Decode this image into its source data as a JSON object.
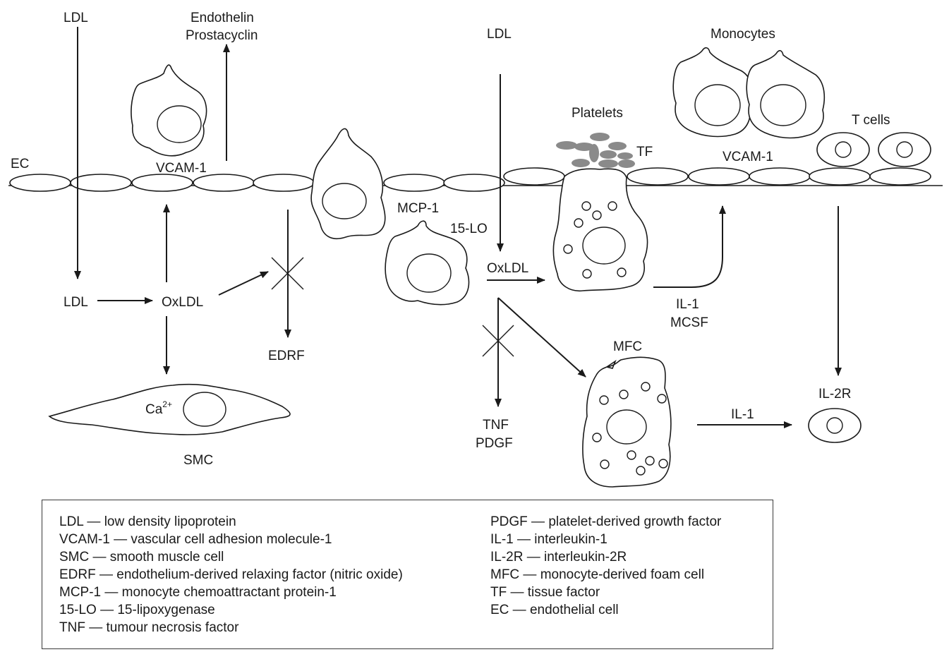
{
  "diagram": {
    "labels": {
      "ldl_top_left": "LDL",
      "endothelin": "Endothelin",
      "prostacyclin": "Prostacyclin",
      "ec": "EC",
      "vcam_left": "VCAM-1",
      "ldl_mid": "LDL",
      "oxldl_left": "OxLDL",
      "edrf": "EDRF",
      "ca": "Ca",
      "ca_sup": "2+",
      "smc": "SMC",
      "mcp1": "MCP-1",
      "lo15": "15-LO",
      "ldl_top_center": "LDL",
      "oxldl_center": "OxLDL",
      "tnf": "TNF",
      "pdgf": "PDGF",
      "platelets": "Platelets",
      "tf": "TF",
      "il1_upper": "IL-1",
      "mcsf": "MCSF",
      "mfc": "MFC",
      "il1_lower": "IL-1",
      "monocytes": "Monocytes",
      "vcam_right": "VCAM-1",
      "tcells": "T cells",
      "il2r": "IL-2R"
    }
  },
  "legend": {
    "left": [
      "LDL — low density lipoprotein",
      "VCAM-1 — vascular cell adhesion molecule-1",
      "SMC — smooth muscle cell",
      "EDRF — endothelium-derived relaxing factor (nitric oxide)",
      "MCP-1 — monocyte chemoattractant protein-1",
      "15-LO — 15-lipoxygenase",
      "TNF — tumour necrosis factor"
    ],
    "right": [
      "PDGF — platelet-derived growth factor",
      "IL-1 — interleukin-1",
      "IL-2R — interleukin-2R",
      "MFC — monocyte-derived foam cell",
      "TF — tissue factor",
      "EC — endothelial cell"
    ]
  }
}
